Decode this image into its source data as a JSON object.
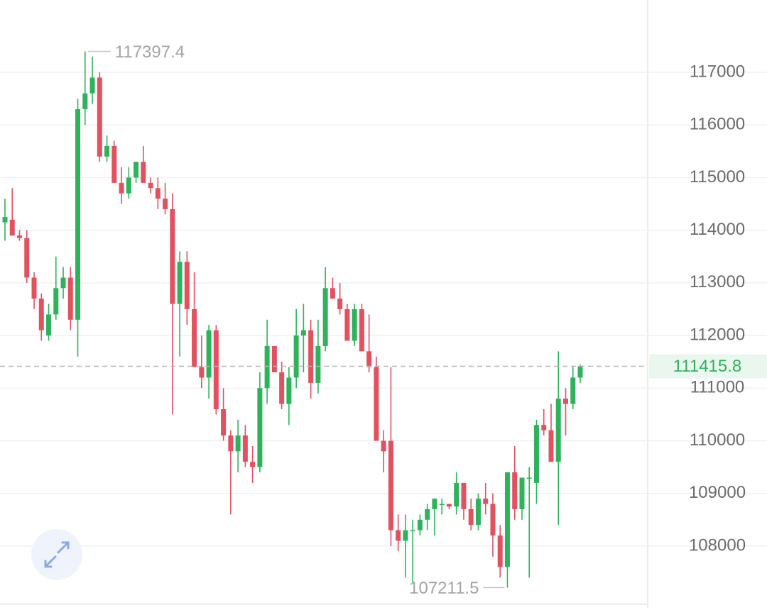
{
  "chart_data": {
    "type": "candlestick",
    "ylim": [
      106814,
      118374
    ],
    "yticks": [
      108000,
      109000,
      110000,
      111000,
      112000,
      113000,
      114000,
      115000,
      116000,
      117000
    ],
    "grid": true,
    "up_color": "#2eb35b",
    "down_color": "#e2515f",
    "annotations": {
      "high": 117397.4,
      "low": 107211.5,
      "last": 111415.8
    },
    "candles": {
      "open": [
        114150,
        114200,
        113900,
        113850,
        113100,
        112700,
        112000,
        112400,
        112900,
        113100,
        112300,
        116300,
        116600,
        116900,
        115400,
        115600,
        114900,
        114700,
        115000,
        115300,
        114900,
        114800,
        114600,
        114400,
        112600,
        113400,
        112500,
        111400,
        111200,
        112100,
        110600,
        110100,
        109800,
        110100,
        109600,
        109500,
        111000,
        111800,
        111300,
        110700,
        111200,
        112000,
        112100,
        111100,
        111800,
        112900,
        112700,
        112500,
        111900,
        112500,
        111700,
        111400,
        110000,
        110000,
        108300,
        108100,
        108300,
        108300,
        108500,
        108700,
        108800,
        108800,
        108750,
        109200,
        108700,
        108400,
        108900,
        108800,
        108200,
        107600,
        109400,
        108700,
        109300,
        109200,
        110300,
        110200,
        109600,
        110800,
        110700,
        111200
      ],
      "high": [
        114600,
        114800,
        114000,
        114000,
        113200,
        112800,
        112600,
        113500,
        113300,
        113300,
        116500,
        117397.4,
        117300,
        117000,
        115800,
        115700,
        115200,
        115200,
        115300,
        115600,
        115000,
        115000,
        114900,
        114700,
        113600,
        113600,
        113200,
        112000,
        112200,
        112200,
        111000,
        110200,
        110400,
        110300,
        109900,
        111300,
        112300,
        111800,
        111500,
        111400,
        112500,
        112600,
        112300,
        112300,
        113300,
        113100,
        113000,
        112600,
        112600,
        112600,
        112400,
        111600,
        110200,
        111400,
        108600,
        108600,
        108500,
        108600,
        108800,
        108900,
        108900,
        108800,
        109400,
        109200,
        108900,
        109000,
        109200,
        109000,
        108400,
        109400,
        109900,
        109300,
        109500,
        110400,
        110600,
        110700,
        111700,
        111000,
        111400,
        111450
      ],
      "low": [
        113800,
        113900,
        113800,
        113000,
        112500,
        111900,
        111900,
        112300,
        112700,
        112100,
        111600,
        116000,
        116400,
        115300,
        115300,
        114900,
        114500,
        114600,
        114900,
        114900,
        114700,
        114400,
        114300,
        110500,
        111600,
        112200,
        111400,
        111000,
        110800,
        110500,
        110000,
        108600,
        109400,
        109500,
        109200,
        109400,
        110700,
        111300,
        110600,
        110300,
        111000,
        111300,
        110800,
        110900,
        111700,
        112700,
        112400,
        111900,
        111800,
        111700,
        111300,
        110000,
        109400,
        108000,
        107900,
        107400,
        107300,
        108200,
        108300,
        108200,
        108600,
        108700,
        108600,
        108500,
        108300,
        108300,
        108600,
        107800,
        107400,
        107211.5,
        108500,
        108500,
        107400,
        108800,
        110100,
        109600,
        108400,
        110100,
        110600,
        111100
      ],
      "close": [
        114250,
        113900,
        113850,
        113100,
        112700,
        112100,
        112400,
        112900,
        113100,
        112300,
        116300,
        116600,
        116900,
        115400,
        115600,
        114900,
        114700,
        115000,
        115300,
        114900,
        114800,
        114600,
        114400,
        112600,
        113400,
        112500,
        111400,
        111200,
        112100,
        110600,
        110100,
        109800,
        110100,
        109600,
        109500,
        111000,
        111800,
        111300,
        110700,
        111200,
        112000,
        112100,
        111100,
        111800,
        112900,
        112700,
        112500,
        111900,
        112500,
        111700,
        111400,
        110000,
        109800,
        108300,
        108100,
        108300,
        108300,
        108500,
        108700,
        108900,
        108800,
        108750,
        109200,
        108700,
        108400,
        108900,
        108800,
        108200,
        107600,
        109400,
        108700,
        109300,
        109300,
        110300,
        110200,
        109600,
        110800,
        110700,
        111200,
        111415.8
      ]
    }
  }
}
